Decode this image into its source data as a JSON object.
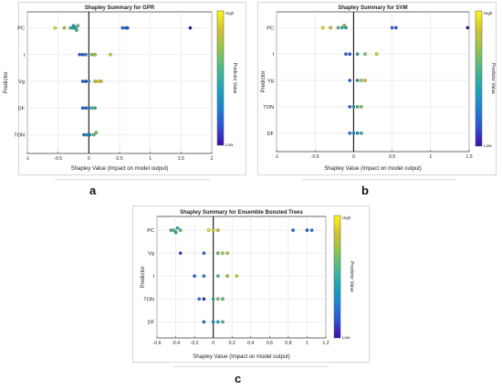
{
  "panel_labels": [
    "a",
    "b",
    "c"
  ],
  "colorbar": {
    "high": "High",
    "low": "Low",
    "title": "Predictor Value"
  },
  "colormap": [
    "#3a0fb0",
    "#2d52d8",
    "#1b84d2",
    "#1aa6b8",
    "#4bba8a",
    "#8ec54f",
    "#d2c22f",
    "#fafa14"
  ],
  "chart_data": [
    {
      "type": "scatter",
      "title": "Shapley Summary for GPR",
      "xlabel": "Shapley Value (Impact on model output)",
      "ylabel": "Predictor",
      "xlim": [
        -1,
        2
      ],
      "xticks": [
        -1,
        -0.5,
        0,
        0.5,
        1,
        1.5,
        2
      ],
      "xtick_labels": [
        "-1",
        "-0.5",
        "0",
        "0.5",
        "1",
        "1.5",
        "2"
      ],
      "categories": [
        "PC",
        "I",
        "Vg",
        "DF",
        "TON"
      ],
      "grid": true,
      "points": [
        {
          "predictor": "PC",
          "x": -0.55,
          "v": 0.95
        },
        {
          "predictor": "PC",
          "x": -0.4,
          "v": 0.8
        },
        {
          "predictor": "PC",
          "x": -0.3,
          "v": 0.55
        },
        {
          "predictor": "PC",
          "x": -0.26,
          "v": 0.5
        },
        {
          "predictor": "PC",
          "x": -0.22,
          "v": 0.45
        },
        {
          "predictor": "PC",
          "x": -0.18,
          "v": 0.6
        },
        {
          "predictor": "PC",
          "x": -0.25,
          "v": 0.4
        },
        {
          "predictor": "PC",
          "x": -0.2,
          "v": 0.52
        },
        {
          "predictor": "PC",
          "x": 0.55,
          "v": 0.2
        },
        {
          "predictor": "PC",
          "x": 0.6,
          "v": 0.25
        },
        {
          "predictor": "PC",
          "x": 0.63,
          "v": 0.15
        },
        {
          "predictor": "PC",
          "x": 1.65,
          "v": 0.0
        },
        {
          "predictor": "I",
          "x": -0.15,
          "v": 0.15
        },
        {
          "predictor": "I",
          "x": -0.1,
          "v": 0.2
        },
        {
          "predictor": "I",
          "x": -0.05,
          "v": 0.25
        },
        {
          "predictor": "I",
          "x": 0.05,
          "v": 0.7
        },
        {
          "predictor": "I",
          "x": 0.1,
          "v": 0.75
        },
        {
          "predictor": "I",
          "x": 0.35,
          "v": 0.9
        },
        {
          "predictor": "Vg",
          "x": -0.1,
          "v": 0.2
        },
        {
          "predictor": "Vg",
          "x": -0.05,
          "v": 0.1
        },
        {
          "predictor": "Vg",
          "x": 0.0,
          "v": 0.5
        },
        {
          "predictor": "Vg",
          "x": 0.1,
          "v": 0.8
        },
        {
          "predictor": "Vg",
          "x": 0.15,
          "v": 0.9
        },
        {
          "predictor": "Vg",
          "x": 0.2,
          "v": 0.85
        },
        {
          "predictor": "DF",
          "x": -0.1,
          "v": 0.2
        },
        {
          "predictor": "DF",
          "x": -0.05,
          "v": 0.15
        },
        {
          "predictor": "DF",
          "x": 0.0,
          "v": 0.3
        },
        {
          "predictor": "DF",
          "x": 0.05,
          "v": 0.6
        },
        {
          "predictor": "DF",
          "x": 0.1,
          "v": 0.5
        },
        {
          "predictor": "TON",
          "x": -0.08,
          "v": 0.25
        },
        {
          "predictor": "TON",
          "x": -0.03,
          "v": 0.35
        },
        {
          "predictor": "TON",
          "x": 0.02,
          "v": 0.45
        },
        {
          "predictor": "TON",
          "x": 0.08,
          "v": 0.6
        },
        {
          "predictor": "TON",
          "x": 0.12,
          "v": 0.7
        }
      ]
    },
    {
      "type": "scatter",
      "title": "Shapley Summary for SVM",
      "xlabel": "Shapley Value (Impact on model output)",
      "ylabel": "Predictor",
      "xlim": [
        -1,
        1.5
      ],
      "xticks": [
        -1,
        -0.5,
        0,
        0.5,
        1,
        1.5
      ],
      "xtick_labels": [
        "-1",
        "-0.5",
        "0",
        "0.5",
        "1",
        "1.5"
      ],
      "categories": [
        "PC",
        "I",
        "Vg",
        "TON",
        "DF"
      ],
      "grid": true,
      "points": [
        {
          "predictor": "PC",
          "x": -0.4,
          "v": 0.95
        },
        {
          "predictor": "PC",
          "x": -0.3,
          "v": 0.85
        },
        {
          "predictor": "PC",
          "x": -0.2,
          "v": 0.6
        },
        {
          "predictor": "PC",
          "x": -0.15,
          "v": 0.5
        },
        {
          "predictor": "PC",
          "x": -0.1,
          "v": 0.45
        },
        {
          "predictor": "PC",
          "x": -0.12,
          "v": 0.7
        },
        {
          "predictor": "PC",
          "x": 0.5,
          "v": 0.2
        },
        {
          "predictor": "PC",
          "x": 0.55,
          "v": 0.15
        },
        {
          "predictor": "PC",
          "x": 1.48,
          "v": 0.0
        },
        {
          "predictor": "I",
          "x": -0.1,
          "v": 0.2
        },
        {
          "predictor": "I",
          "x": -0.05,
          "v": 0.15
        },
        {
          "predictor": "I",
          "x": 0.05,
          "v": 0.5
        },
        {
          "predictor": "I",
          "x": 0.15,
          "v": 0.7
        },
        {
          "predictor": "I",
          "x": 0.3,
          "v": 0.9
        },
        {
          "predictor": "Vg",
          "x": -0.05,
          "v": 0.2
        },
        {
          "predictor": "Vg",
          "x": 0.05,
          "v": 0.4
        },
        {
          "predictor": "Vg",
          "x": 0.1,
          "v": 0.8
        },
        {
          "predictor": "Vg",
          "x": 0.15,
          "v": 0.85
        },
        {
          "predictor": "TON",
          "x": -0.05,
          "v": 0.2
        },
        {
          "predictor": "TON",
          "x": 0.0,
          "v": 0.45
        },
        {
          "predictor": "TON",
          "x": 0.05,
          "v": 0.6
        },
        {
          "predictor": "TON",
          "x": 0.1,
          "v": 0.7
        },
        {
          "predictor": "DF",
          "x": -0.05,
          "v": 0.25
        },
        {
          "predictor": "DF",
          "x": 0.0,
          "v": 0.35
        },
        {
          "predictor": "DF",
          "x": 0.05,
          "v": 0.3
        },
        {
          "predictor": "DF",
          "x": 0.1,
          "v": 0.5
        }
      ]
    },
    {
      "type": "scatter",
      "title": "Shapley Summary for Ensemble Boosted Trees",
      "xlabel": "Shapley Value (Impact on model output)",
      "ylabel": "Predictor",
      "xlim": [
        -0.6,
        1.2
      ],
      "xticks": [
        -0.6,
        -0.4,
        -0.2,
        0,
        0.2,
        0.4,
        0.6,
        0.8,
        1,
        1.2
      ],
      "xtick_labels": [
        "-0.6",
        "-0.4",
        "-0.2",
        "0",
        "0.2",
        "0.4",
        "0.6",
        "0.8",
        "1",
        "1.2"
      ],
      "categories": [
        "PC",
        "Vg",
        "I",
        "TON",
        "DF"
      ],
      "grid": true,
      "points": [
        {
          "predictor": "PC",
          "x": -0.45,
          "v": 0.55
        },
        {
          "predictor": "PC",
          "x": -0.42,
          "v": 0.6
        },
        {
          "predictor": "PC",
          "x": -0.38,
          "v": 0.5
        },
        {
          "predictor": "PC",
          "x": -0.35,
          "v": 0.65
        },
        {
          "predictor": "PC",
          "x": -0.4,
          "v": 0.45
        },
        {
          "predictor": "PC",
          "x": -0.05,
          "v": 0.95
        },
        {
          "predictor": "PC",
          "x": 0.0,
          "v": 0.9
        },
        {
          "predictor": "PC",
          "x": 0.05,
          "v": 0.85
        },
        {
          "predictor": "PC",
          "x": 0.85,
          "v": 0.2
        },
        {
          "predictor": "PC",
          "x": 1.0,
          "v": 0.15
        },
        {
          "predictor": "PC",
          "x": 1.05,
          "v": 0.25
        },
        {
          "predictor": "Vg",
          "x": -0.35,
          "v": 0.1
        },
        {
          "predictor": "Vg",
          "x": -0.1,
          "v": 0.2
        },
        {
          "predictor": "Vg",
          "x": 0.05,
          "v": 0.6
        },
        {
          "predictor": "Vg",
          "x": 0.1,
          "v": 0.75
        },
        {
          "predictor": "Vg",
          "x": 0.15,
          "v": 0.85
        },
        {
          "predictor": "I",
          "x": -0.2,
          "v": 0.2
        },
        {
          "predictor": "I",
          "x": -0.1,
          "v": 0.3
        },
        {
          "predictor": "I",
          "x": 0.05,
          "v": 0.6
        },
        {
          "predictor": "I",
          "x": 0.15,
          "v": 0.8
        },
        {
          "predictor": "I",
          "x": 0.25,
          "v": 0.9
        },
        {
          "predictor": "TON",
          "x": -0.15,
          "v": 0.3
        },
        {
          "predictor": "TON",
          "x": -0.1,
          "v": 0.05
        },
        {
          "predictor": "TON",
          "x": 0.0,
          "v": 0.5
        },
        {
          "predictor": "TON",
          "x": 0.05,
          "v": 0.7
        },
        {
          "predictor": "TON",
          "x": 0.1,
          "v": 0.6
        },
        {
          "predictor": "DF",
          "x": -0.1,
          "v": 0.2
        },
        {
          "predictor": "DF",
          "x": 0.0,
          "v": 0.35
        },
        {
          "predictor": "DF",
          "x": 0.05,
          "v": 0.45
        },
        {
          "predictor": "DF",
          "x": 0.1,
          "v": 0.55
        }
      ]
    }
  ]
}
